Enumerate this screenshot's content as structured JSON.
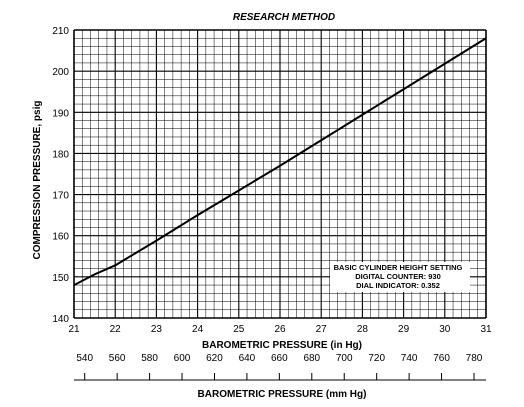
{
  "chart_data": {
    "type": "line",
    "title": "RESEARCH METHOD",
    "xlabel": "BAROMETRIC PRESSURE (in Hg)",
    "ylabel": "COMPRESSION PRESSURE, psig",
    "xlim": [
      21,
      31
    ],
    "ylim": [
      140,
      210
    ],
    "grid": true,
    "x_ticks": [
      21,
      22,
      23,
      24,
      25,
      26,
      27,
      28,
      29,
      30,
      31
    ],
    "y_ticks": [
      140,
      150,
      160,
      170,
      180,
      190,
      200,
      210
    ],
    "series": [
      {
        "x": [
          21,
          21.5,
          22,
          23,
          24,
          25,
          26,
          27,
          28,
          29,
          30,
          31
        ],
        "y": [
          148.0,
          150.6,
          152.8,
          158.8,
          165.0,
          171.0,
          177.0,
          183.2,
          189.4,
          195.6,
          201.8,
          208.0
        ]
      }
    ],
    "annotation": [
      "BASIC CYLINDER HEIGHT SETTING",
      "DIGITAL COUNTER: 930",
      "DIAL INDICATOR: 0.352"
    ],
    "secondary_axis": {
      "label": "BAROMETRIC PRESSURE (mm Hg)",
      "ticks": [
        540,
        560,
        580,
        600,
        620,
        640,
        660,
        680,
        700,
        720,
        740,
        760,
        780
      ]
    }
  }
}
